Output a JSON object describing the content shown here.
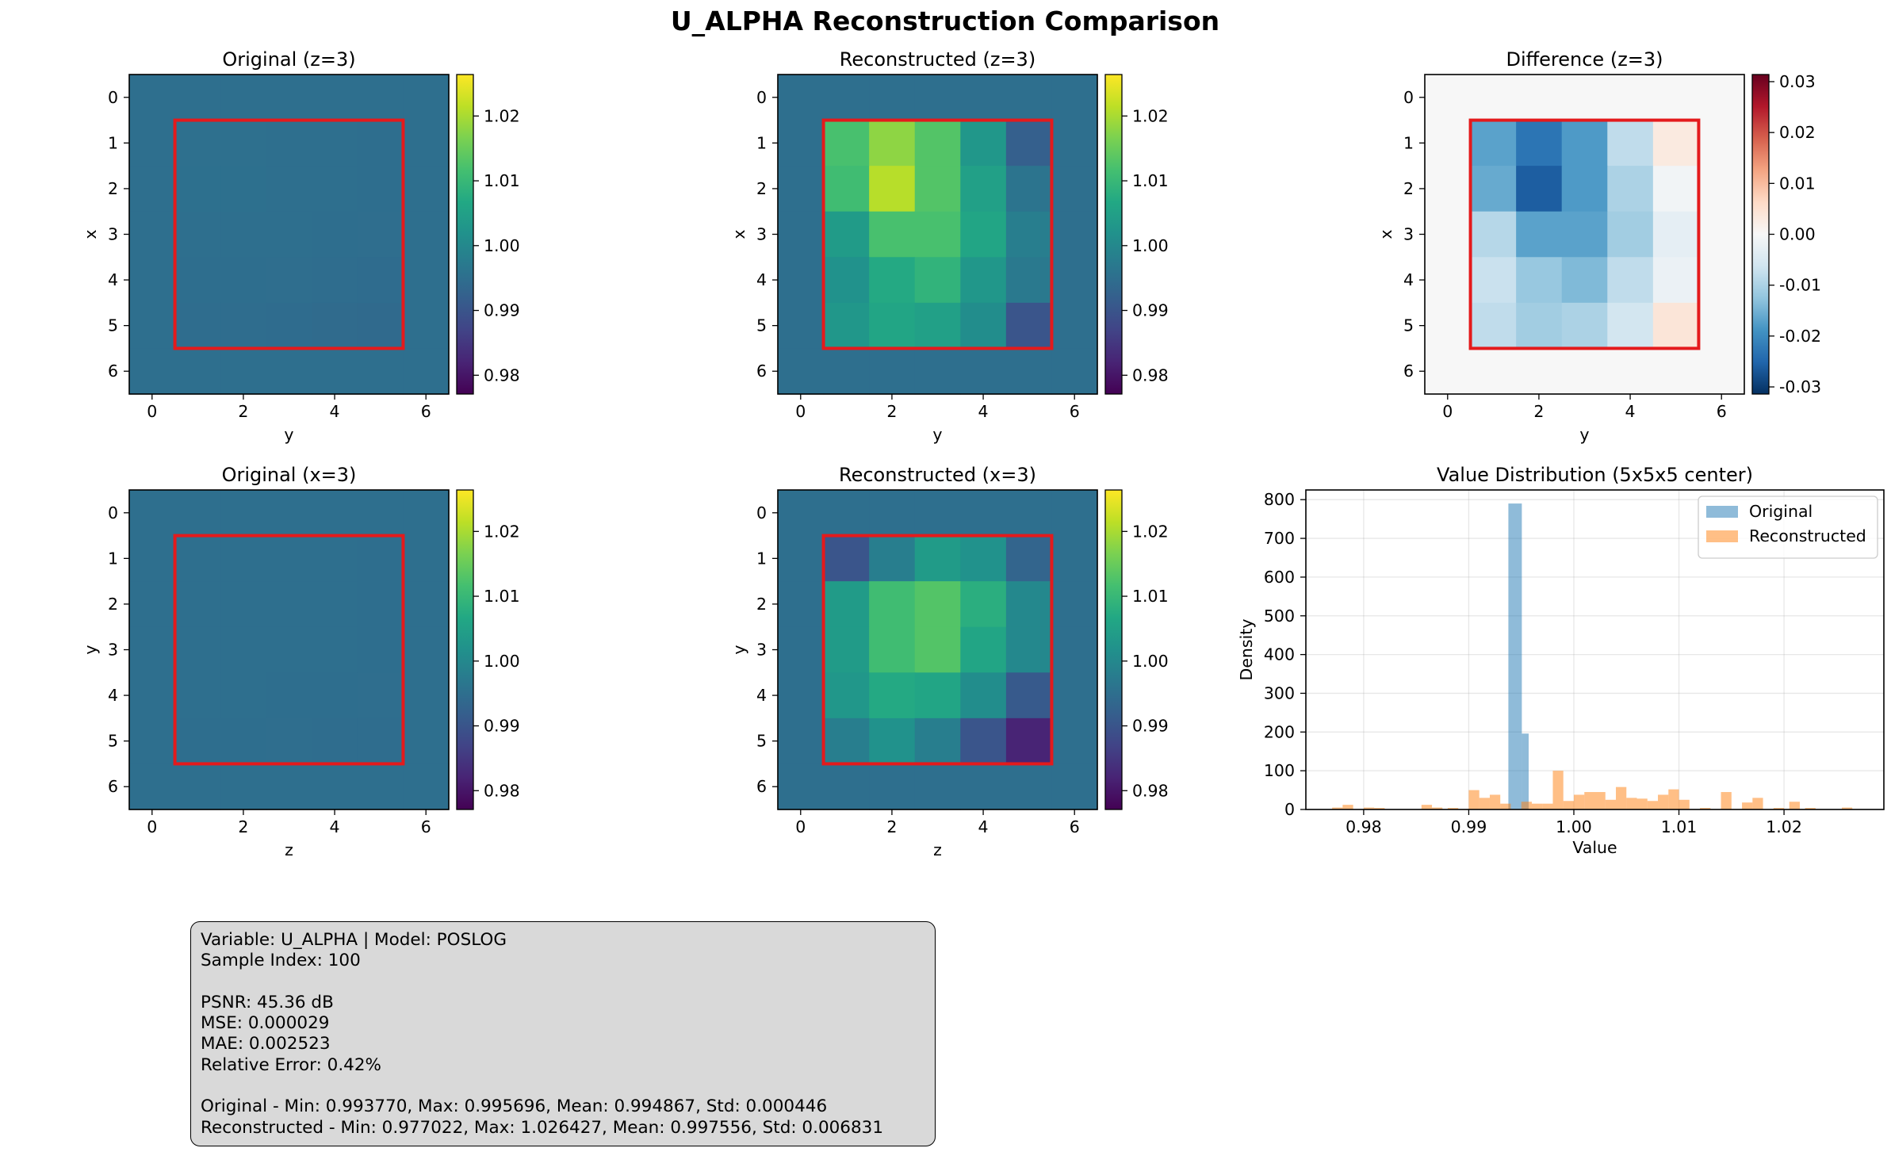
{
  "figure": {
    "title": "U_ALPHA Reconstruction Comparison"
  },
  "chart_data": [
    {
      "type": "heatmap",
      "title": "Original (z=3)",
      "xlabel": "y",
      "ylabel": "x",
      "x_ticks": [
        0,
        2,
        4,
        6
      ],
      "y_ticks": [
        0,
        1,
        2,
        3,
        4,
        5,
        6
      ],
      "colormap": "viridis",
      "clim": [
        0.9771,
        1.0264
      ],
      "colorbar_ticks": [
        0.98,
        0.99,
        1.0,
        1.01,
        1.02
      ],
      "highlight_box": {
        "rows": [
          1,
          5
        ],
        "cols": [
          1,
          5
        ],
        "color": "#e41a1c"
      },
      "values": [
        [
          0.995,
          0.995,
          0.995,
          0.995,
          0.995,
          0.995,
          0.995
        ],
        [
          0.995,
          0.9952,
          0.9952,
          0.9951,
          0.9951,
          0.9949,
          0.995
        ],
        [
          0.995,
          0.9953,
          0.9953,
          0.9951,
          0.9951,
          0.9949,
          0.995
        ],
        [
          0.995,
          0.9951,
          0.9951,
          0.995,
          0.9949,
          0.9948,
          0.995
        ],
        [
          0.995,
          0.9949,
          0.9949,
          0.9948,
          0.9946,
          0.9944,
          0.995
        ],
        [
          0.995,
          0.9947,
          0.9947,
          0.9944,
          0.9942,
          0.994,
          0.995
        ],
        [
          0.995,
          0.995,
          0.995,
          0.995,
          0.995,
          0.995,
          0.995
        ]
      ]
    },
    {
      "type": "heatmap",
      "title": "Reconstructed (z=3)",
      "xlabel": "y",
      "ylabel": "x",
      "x_ticks": [
        0,
        2,
        4,
        6
      ],
      "y_ticks": [
        0,
        1,
        2,
        3,
        4,
        5,
        6
      ],
      "colormap": "viridis",
      "clim": [
        0.9771,
        1.0264
      ],
      "colorbar_ticks": [
        0.98,
        0.99,
        1.0,
        1.01,
        1.02
      ],
      "highlight_box": {
        "rows": [
          1,
          5
        ],
        "cols": [
          1,
          5
        ],
        "color": "#e41a1c"
      },
      "values": [
        [
          0.995,
          0.995,
          0.995,
          0.995,
          0.995,
          0.995,
          0.995
        ],
        [
          0.995,
          1.012,
          1.018,
          1.013,
          1.003,
          0.992,
          0.995
        ],
        [
          0.995,
          1.011,
          1.021,
          1.013,
          1.005,
          0.996,
          0.995
        ],
        [
          0.995,
          1.004,
          1.012,
          1.012,
          1.006,
          0.998,
          0.995
        ],
        [
          0.995,
          1.002,
          1.007,
          1.009,
          1.003,
          0.997,
          0.995
        ],
        [
          0.995,
          1.003,
          1.006,
          1.005,
          1.001,
          0.99,
          0.995
        ],
        [
          0.995,
          0.995,
          0.995,
          0.995,
          0.995,
          0.995,
          0.995
        ]
      ]
    },
    {
      "type": "heatmap",
      "title": "Difference (z=3)",
      "xlabel": "y",
      "ylabel": "x",
      "x_ticks": [
        0,
        2,
        4,
        6
      ],
      "y_ticks": [
        0,
        1,
        2,
        3,
        4,
        5,
        6
      ],
      "colormap": "RdBu_r",
      "clim": [
        -0.0314,
        0.0314
      ],
      "colorbar_ticks": [
        -0.03,
        -0.02,
        -0.01,
        0.0,
        0.01,
        0.02,
        0.03
      ],
      "highlight_box": {
        "rows": [
          1,
          5
        ],
        "cols": [
          1,
          5
        ],
        "color": "#e41a1c"
      },
      "values": [
        [
          0,
          0,
          0,
          0,
          0,
          0,
          0
        ],
        [
          0,
          -0.017,
          -0.023,
          -0.018,
          -0.008,
          0.003,
          0
        ],
        [
          0,
          -0.016,
          -0.026,
          -0.018,
          -0.01,
          -0.001,
          0
        ],
        [
          0,
          -0.009,
          -0.017,
          -0.017,
          -0.011,
          -0.003,
          0
        ],
        [
          0,
          -0.007,
          -0.012,
          -0.014,
          -0.008,
          -0.002,
          0
        ],
        [
          0,
          -0.008,
          -0.011,
          -0.01,
          -0.006,
          0.004,
          0
        ],
        [
          0,
          0,
          0,
          0,
          0,
          0,
          0
        ]
      ]
    },
    {
      "type": "heatmap",
      "title": "Original (x=3)",
      "xlabel": "z",
      "ylabel": "y",
      "x_ticks": [
        0,
        2,
        4,
        6
      ],
      "y_ticks": [
        0,
        1,
        2,
        3,
        4,
        5,
        6
      ],
      "colormap": "viridis",
      "clim": [
        0.9771,
        1.0264
      ],
      "colorbar_ticks": [
        0.98,
        0.99,
        1.0,
        1.01,
        1.02
      ],
      "highlight_box": {
        "rows": [
          1,
          5
        ],
        "cols": [
          1,
          5
        ],
        "color": "#e41a1c"
      },
      "values": [
        [
          0.995,
          0.995,
          0.995,
          0.995,
          0.995,
          0.995,
          0.995
        ],
        [
          0.995,
          0.9951,
          0.9951,
          0.9951,
          0.995,
          0.9949,
          0.995
        ],
        [
          0.995,
          0.9951,
          0.9951,
          0.9951,
          0.995,
          0.9949,
          0.995
        ],
        [
          0.995,
          0.9951,
          0.9951,
          0.995,
          0.995,
          0.9949,
          0.995
        ],
        [
          0.995,
          0.995,
          0.995,
          0.9949,
          0.9949,
          0.9948,
          0.995
        ],
        [
          0.995,
          0.9949,
          0.9949,
          0.9948,
          0.9947,
          0.9946,
          0.995
        ],
        [
          0.995,
          0.995,
          0.995,
          0.995,
          0.995,
          0.995,
          0.995
        ]
      ]
    },
    {
      "type": "heatmap",
      "title": "Reconstructed (x=3)",
      "xlabel": "z",
      "ylabel": "y",
      "x_ticks": [
        0,
        2,
        4,
        6
      ],
      "y_ticks": [
        0,
        1,
        2,
        3,
        4,
        5,
        6
      ],
      "colormap": "viridis",
      "clim": [
        0.9771,
        1.0264
      ],
      "colorbar_ticks": [
        0.98,
        0.99,
        1.0,
        1.01,
        1.02
      ],
      "highlight_box": {
        "rows": [
          1,
          5
        ],
        "cols": [
          1,
          5
        ],
        "color": "#e41a1c"
      },
      "values": [
        [
          0.995,
          0.995,
          0.995,
          0.995,
          0.995,
          0.995,
          0.995
        ],
        [
          0.995,
          0.99,
          0.998,
          1.004,
          1.002,
          0.993,
          0.995
        ],
        [
          0.995,
          1.004,
          1.011,
          1.013,
          1.008,
          1.0,
          0.995
        ],
        [
          0.995,
          1.004,
          1.011,
          1.013,
          1.006,
          1.0,
          0.995
        ],
        [
          0.995,
          1.003,
          1.007,
          1.006,
          1.001,
          0.991,
          0.995
        ],
        [
          0.995,
          0.998,
          1.002,
          0.998,
          0.99,
          0.982,
          0.995
        ],
        [
          0.995,
          0.995,
          0.995,
          0.995,
          0.995,
          0.995,
          0.995
        ]
      ]
    },
    {
      "type": "bar",
      "subtype": "histogram",
      "title": "Value Distribution (5x5x5 center)",
      "xlabel": "Value",
      "ylabel": "Density",
      "xlim": [
        0.9745,
        1.0295
      ],
      "ylim": [
        0,
        825
      ],
      "x_ticks": [
        0.98,
        0.99,
        1.0,
        1.01,
        1.02
      ],
      "y_ticks": [
        0,
        100,
        200,
        300,
        400,
        500,
        600,
        700,
        800
      ],
      "grid": true,
      "legend": "top-right",
      "series": [
        {
          "name": "Original",
          "color": "#1f77b4",
          "alpha": 0.5,
          "bins": [
            [
              0.99377,
              0.99505,
              790
            ],
            [
              0.99505,
              0.9957,
              196
            ]
          ]
        },
        {
          "name": "Reconstructed",
          "color": "#ff7f0e",
          "alpha": 0.5,
          "bins": [
            [
              0.977,
              0.978,
              5
            ],
            [
              0.978,
              0.979,
              12
            ],
            [
              0.98,
              0.981,
              5
            ],
            [
              0.981,
              0.982,
              4
            ],
            [
              0.9855,
              0.9865,
              12
            ],
            [
              0.9865,
              0.9875,
              5
            ],
            [
              0.988,
              0.989,
              4
            ],
            [
              0.99,
              0.991,
              50
            ],
            [
              0.991,
              0.992,
              30
            ],
            [
              0.992,
              0.993,
              38
            ],
            [
              0.993,
              0.994,
              15
            ],
            [
              0.995,
              0.996,
              20
            ],
            [
              0.996,
              0.997,
              15
            ],
            [
              0.997,
              0.998,
              15
            ],
            [
              0.998,
              0.999,
              100
            ],
            [
              0.999,
              1.0,
              22
            ],
            [
              1.0,
              1.001,
              38
            ],
            [
              1.001,
              1.002,
              45
            ],
            [
              1.002,
              1.003,
              45
            ],
            [
              1.003,
              1.004,
              25
            ],
            [
              1.004,
              1.005,
              58
            ],
            [
              1.005,
              1.006,
              30
            ],
            [
              1.006,
              1.007,
              28
            ],
            [
              1.007,
              1.008,
              22
            ],
            [
              1.008,
              1.009,
              38
            ],
            [
              1.009,
              1.01,
              52
            ],
            [
              1.01,
              1.011,
              25
            ],
            [
              1.012,
              1.013,
              4
            ],
            [
              1.014,
              1.015,
              45
            ],
            [
              1.016,
              1.017,
              18
            ],
            [
              1.017,
              1.018,
              30
            ],
            [
              1.019,
              1.02,
              4
            ],
            [
              1.0205,
              1.0215,
              20
            ],
            [
              1.022,
              1.023,
              4
            ],
            [
              1.0255,
              1.0265,
              5
            ]
          ]
        }
      ]
    }
  ],
  "stats": {
    "line1": "Variable: U_ALPHA | Model: POSLOG",
    "line2": "Sample Index: 100",
    "line3": "PSNR: 45.36 dB",
    "line4": "MSE: 0.000029",
    "line5": "MAE: 0.002523",
    "line6": "Relative Error: 0.42%",
    "line7": "Original - Min: 0.993770, Max: 0.995696, Mean: 0.994867, Std: 0.000446",
    "line8": "Reconstructed - Min: 0.977022, Max: 1.026427, Mean: 0.997556, Std: 0.006831"
  }
}
